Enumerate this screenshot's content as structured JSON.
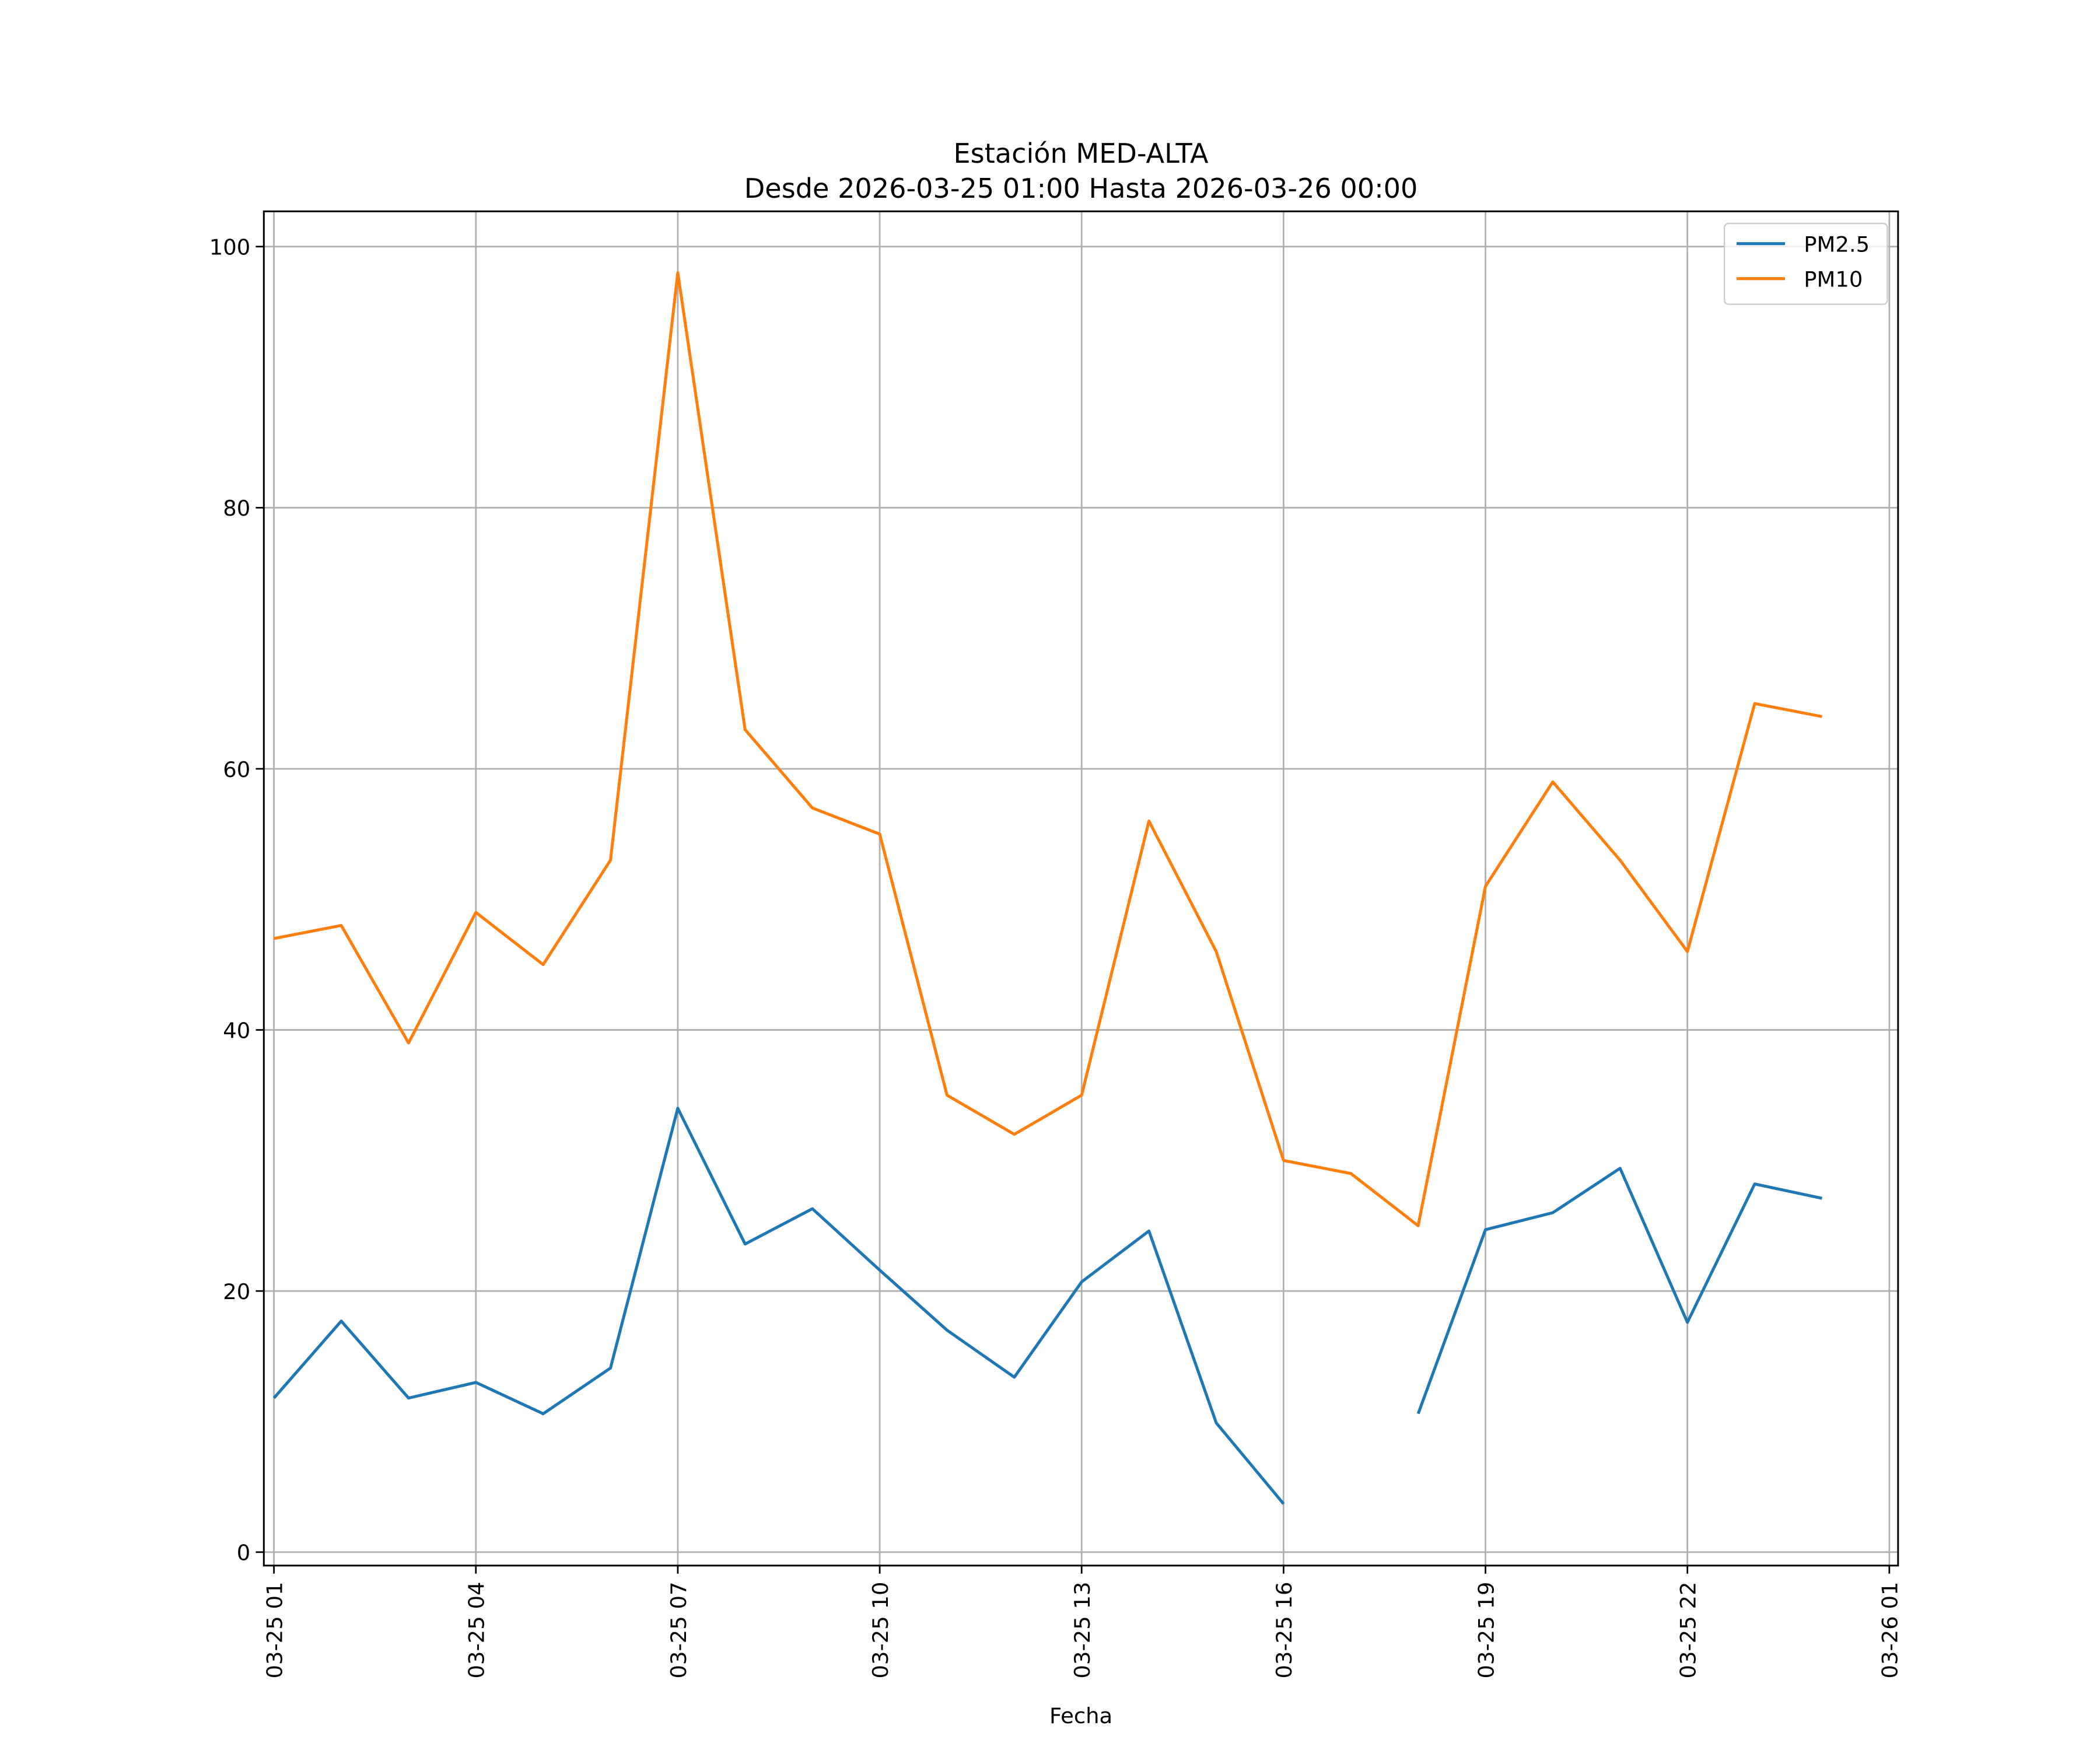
{
  "chart_data": {
    "type": "line",
    "title": "Estación MED-ALTA",
    "subtitle": "Desde 2026-03-25 01:00 Hasta 2026-03-26 00:00",
    "xlabel": "Fecha",
    "ylabel": "",
    "x_hours": [
      1,
      2,
      3,
      4,
      5,
      6,
      7,
      8,
      9,
      10,
      11,
      12,
      13,
      14,
      15,
      16,
      17,
      18,
      19,
      20,
      21,
      22,
      23,
      24
    ],
    "xlim_hours": [
      0.85,
      25.13
    ],
    "ylim": [
      -1.03,
      102.7
    ],
    "x_ticks": [
      {
        "hour": 1,
        "label": "03-25 01"
      },
      {
        "hour": 4,
        "label": "03-25 04"
      },
      {
        "hour": 7,
        "label": "03-25 07"
      },
      {
        "hour": 10,
        "label": "03-25 10"
      },
      {
        "hour": 13,
        "label": "03-25 13"
      },
      {
        "hour": 16,
        "label": "03-25 16"
      },
      {
        "hour": 19,
        "label": "03-25 19"
      },
      {
        "hour": 22,
        "label": "03-25 22"
      },
      {
        "hour": 25,
        "label": "03-26 01"
      }
    ],
    "y_ticks": [
      0,
      20,
      40,
      60,
      80,
      100
    ],
    "grid": true,
    "legend_position": "top-right",
    "series": [
      {
        "name": "PM2.5",
        "color": "#1f77b4",
        "values": [
          11.8,
          17.7,
          11.8,
          13,
          10.6,
          14.1,
          34,
          23.6,
          26.3,
          21.6,
          17,
          13.4,
          20.7,
          24.6,
          9.9,
          3.7,
          null,
          10.6,
          24.7,
          26,
          29.4,
          17.6,
          28.2,
          27.1
        ]
      },
      {
        "name": "PM10",
        "color": "#ff7f0e",
        "values": [
          47,
          48,
          39,
          49,
          45,
          53,
          98,
          63,
          57,
          55,
          35,
          32,
          35,
          56,
          46,
          30,
          29,
          25,
          51,
          59,
          53,
          46,
          65,
          64
        ]
      }
    ]
  }
}
